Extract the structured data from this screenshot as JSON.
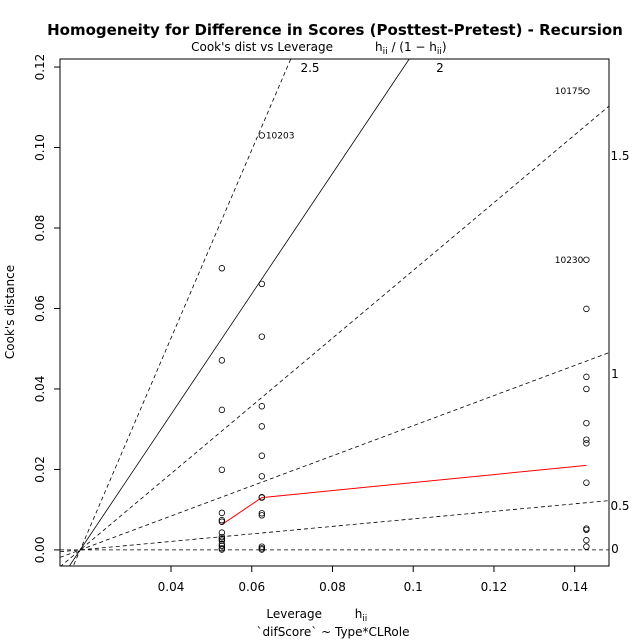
{
  "chart_data": {
    "type": "scatter",
    "title": "Homogeneity for Difference in Scores (Posttest-Pretest) - Recursion",
    "subtitle": "Cook's dist vs Leverage",
    "xlabel": "Leverage",
    "caption": "`difScore` ~ Type*CLRole",
    "ylabel": "Cook's distance",
    "xlim": [
      0.0125,
      0.1485
    ],
    "ylim": [
      -0.004,
      0.122
    ],
    "x_ticks": [
      "0.04",
      "0.06",
      "0.08",
      "0.1",
      "0.12",
      "0.14"
    ],
    "y_ticks": [
      "0.00",
      "0.02",
      "0.04",
      "0.06",
      "0.08",
      "0.10",
      "0.12"
    ],
    "contour_labels": [
      "2.5",
      "2",
      "1.5",
      "1",
      "0.5",
      "0"
    ],
    "point_labels": [
      "10175",
      "10203",
      "10230"
    ],
    "points": [
      {
        "x": 0.0526,
        "y": 0.07
      },
      {
        "x": 0.0526,
        "y": 0.0471
      },
      {
        "x": 0.0526,
        "y": 0.0348
      },
      {
        "x": 0.0526,
        "y": 0.0199
      },
      {
        "x": 0.0526,
        "y": 0.0092
      },
      {
        "x": 0.0526,
        "y": 0.0074
      },
      {
        "x": 0.0526,
        "y": 0.007
      },
      {
        "x": 0.0526,
        "y": 0.0043
      },
      {
        "x": 0.0526,
        "y": 0.0032
      },
      {
        "x": 0.0526,
        "y": 0.0027
      },
      {
        "x": 0.0526,
        "y": 0.0023
      },
      {
        "x": 0.0526,
        "y": 0.0015
      },
      {
        "x": 0.0526,
        "y": 0.001
      },
      {
        "x": 0.0526,
        "y": 0.0004
      },
      {
        "x": 0.0526,
        "y": 0.0001
      },
      {
        "x": 0.0625,
        "y": 0.103,
        "label": "10203"
      },
      {
        "x": 0.0625,
        "y": 0.0661
      },
      {
        "x": 0.0625,
        "y": 0.053
      },
      {
        "x": 0.0625,
        "y": 0.0357
      },
      {
        "x": 0.0625,
        "y": 0.0307
      },
      {
        "x": 0.0625,
        "y": 0.0234
      },
      {
        "x": 0.0625,
        "y": 0.0183
      },
      {
        "x": 0.0625,
        "y": 0.0131
      },
      {
        "x": 0.0625,
        "y": 0.013
      },
      {
        "x": 0.0625,
        "y": 0.0091
      },
      {
        "x": 0.0625,
        "y": 0.0086
      },
      {
        "x": 0.0625,
        "y": 0.0008
      },
      {
        "x": 0.0625,
        "y": 0.0004
      },
      {
        "x": 0.0625,
        "y": 0.0001
      },
      {
        "x": 0.1429,
        "y": 0.114,
        "label": "10175"
      },
      {
        "x": 0.1429,
        "y": 0.0721,
        "label": "10230"
      },
      {
        "x": 0.1429,
        "y": 0.0599
      },
      {
        "x": 0.1429,
        "y": 0.043
      },
      {
        "x": 0.1429,
        "y": 0.04
      },
      {
        "x": 0.1429,
        "y": 0.0315
      },
      {
        "x": 0.1429,
        "y": 0.0274
      },
      {
        "x": 0.1429,
        "y": 0.0265
      },
      {
        "x": 0.1429,
        "y": 0.0167
      },
      {
        "x": 0.1429,
        "y": 0.0053
      },
      {
        "x": 0.1429,
        "y": 0.005
      },
      {
        "x": 0.1429,
        "y": 0.0024
      },
      {
        "x": 0.1429,
        "y": 0.0008
      }
    ],
    "smooth_line": [
      {
        "x": 0.0526,
        "y": 0.0063
      },
      {
        "x": 0.0625,
        "y": 0.013
      },
      {
        "x": 0.1429,
        "y": 0.021
      }
    ],
    "contour_levels": [
      0.5,
      1,
      1.5,
      2,
      2.5
    ],
    "grid": false,
    "smooth_color": "#ff0000",
    "point_color": "#000000"
  }
}
